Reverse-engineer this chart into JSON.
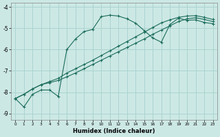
{
  "xlabel": "Humidex (Indice chaleur)",
  "bg_color": "#cce8e5",
  "grid_color": "#aad4d0",
  "line_color": "#1a6b5a",
  "xlim": [
    -0.5,
    23.5
  ],
  "ylim": [
    -9.3,
    -3.8
  ],
  "yticks": [
    -9,
    -8,
    -7,
    -6,
    -5,
    -4
  ],
  "line1_x": [
    0,
    1,
    2,
    3,
    4,
    5,
    6,
    7,
    8,
    9,
    10,
    11,
    12,
    13,
    14,
    15,
    16,
    17,
    18,
    19,
    20,
    21,
    22,
    23
  ],
  "line1_y": [
    -8.3,
    -8.7,
    -8.1,
    -7.9,
    -7.9,
    -8.2,
    -6.0,
    -5.5,
    -5.15,
    -5.05,
    -4.45,
    -4.38,
    -4.42,
    -4.55,
    -4.75,
    -5.1,
    -5.45,
    -5.65,
    -4.82,
    -4.52,
    -4.62,
    -4.6,
    -4.72,
    -4.78
  ],
  "line2_x": [
    0,
    1,
    2,
    3,
    4,
    5,
    6,
    7,
    8,
    9,
    10,
    11,
    12,
    13,
    14,
    15,
    16,
    17,
    18,
    19,
    20,
    21,
    22,
    23
  ],
  "line2_y": [
    -8.3,
    -8.1,
    -7.85,
    -7.65,
    -7.5,
    -7.35,
    -7.1,
    -6.9,
    -6.7,
    -6.5,
    -6.28,
    -6.06,
    -5.84,
    -5.62,
    -5.4,
    -5.18,
    -4.96,
    -4.74,
    -4.6,
    -4.48,
    -4.42,
    -4.4,
    -4.48,
    -4.58
  ],
  "line3_x": [
    0,
    1,
    2,
    3,
    4,
    5,
    6,
    7,
    8,
    9,
    10,
    11,
    12,
    13,
    14,
    15,
    16,
    17,
    18,
    19,
    20,
    21,
    22,
    23
  ],
  "line3_y": [
    -8.3,
    -8.1,
    -7.85,
    -7.65,
    -7.55,
    -7.45,
    -7.28,
    -7.1,
    -6.9,
    -6.7,
    -6.5,
    -6.3,
    -6.1,
    -5.9,
    -5.7,
    -5.5,
    -5.28,
    -5.08,
    -4.88,
    -4.68,
    -4.55,
    -4.5,
    -4.58,
    -4.68
  ]
}
